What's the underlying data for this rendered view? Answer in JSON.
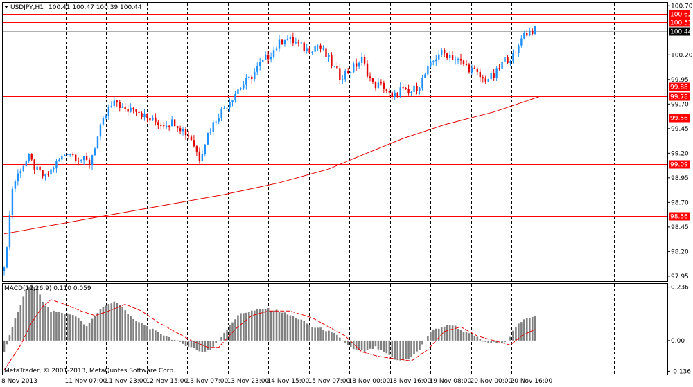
{
  "header": {
    "symbol_label": "USDJPY,H1",
    "ohlc_label": "100.41 100.47 100.39 100.44",
    "dropdown_icon": "triangle-down-icon"
  },
  "copyright": "MetaTrader, © 2001-2013, MetaQuotes Software Corp.",
  "colors": {
    "bull": "#1e90ff",
    "bear": "#e00000",
    "level": "#ff0000",
    "ma": "#e00000",
    "hist": "#808080",
    "grid": "#000000",
    "current_price_bg": "#000000"
  },
  "chart_data": [
    {
      "type": "candlestick",
      "title": "USDJPY,H1",
      "price_axis": {
        "ticks": [
          "100.70",
          "100.20",
          "99.95",
          "99.70",
          "99.45",
          "99.20",
          "98.95",
          "98.70",
          "98.45",
          "98.20",
          "97.95"
        ],
        "ylim": [
          97.9,
          100.73
        ]
      },
      "time_axis": {
        "ticks": [
          "8 Nov 2013",
          "11 Nov 07:00",
          "11 Nov 23:00",
          "12 Nov 15:00",
          "13 Nov 07:00",
          "13 Nov 23:00",
          "14 Nov 15:00",
          "15 Nov 07:00",
          "18 Nov 00:00",
          "18 Nov 16:00",
          "19 Nov 08:00",
          "20 Nov 00:00",
          "20 Nov 16:00"
        ]
      },
      "levels": [
        "100.62",
        "100.53",
        "99.88",
        "99.78",
        "99.56",
        "99.09",
        "98.56"
      ],
      "current_price": "100.44",
      "grid": "vertical dashed",
      "ma_points": [
        [
          0,
          98.38
        ],
        [
          20,
          98.48
        ],
        [
          40,
          98.58
        ],
        [
          60,
          98.68
        ],
        [
          80,
          98.78
        ],
        [
          100,
          98.9
        ],
        [
          118,
          99.04
        ],
        [
          130,
          99.18
        ],
        [
          145,
          99.35
        ],
        [
          160,
          99.49
        ],
        [
          178,
          99.62
        ],
        [
          195,
          99.78
        ]
      ],
      "close_path": [
        [
          0,
          98.0
        ],
        [
          3,
          98.85
        ],
        [
          6,
          99.05
        ],
        [
          9,
          99.15
        ],
        [
          12,
          99.02
        ],
        [
          15,
          98.95
        ],
        [
          19,
          99.1
        ],
        [
          23,
          99.22
        ],
        [
          27,
          99.15
        ],
        [
          31,
          99.1
        ],
        [
          35,
          99.45
        ],
        [
          38,
          99.65
        ],
        [
          41,
          99.72
        ],
        [
          44,
          99.62
        ],
        [
          47,
          99.68
        ],
        [
          52,
          99.55
        ],
        [
          57,
          99.5
        ],
        [
          62,
          99.52
        ],
        [
          68,
          99.35
        ],
        [
          71,
          99.15
        ],
        [
          74,
          99.4
        ],
        [
          78,
          99.6
        ],
        [
          81,
          99.7
        ],
        [
          85,
          99.85
        ],
        [
          89,
          99.95
        ],
        [
          93,
          100.1
        ],
        [
          98,
          100.25
        ],
        [
          102,
          100.38
        ],
        [
          106,
          100.32
        ],
        [
          110,
          100.25
        ],
        [
          114,
          100.3
        ],
        [
          118,
          100.15
        ],
        [
          122,
          99.98
        ],
        [
          126,
          100.05
        ],
        [
          130,
          100.15
        ],
        [
          134,
          99.9
        ],
        [
          138,
          99.88
        ],
        [
          141,
          99.75
        ],
        [
          144,
          99.85
        ],
        [
          147,
          99.8
        ],
        [
          151,
          99.9
        ],
        [
          154,
          100.05
        ],
        [
          158,
          100.22
        ],
        [
          162,
          100.2
        ],
        [
          166,
          100.12
        ],
        [
          170,
          100.05
        ],
        [
          174,
          99.95
        ],
        [
          178,
          99.98
        ],
        [
          182,
          100.15
        ],
        [
          186,
          100.2
        ],
        [
          188,
          100.4
        ],
        [
          192,
          100.45
        ]
      ],
      "copyright": "MetaTrader, © 2001-2013, MetaQuotes Software Corp."
    },
    {
      "type": "bar",
      "title": "MACD(12,26,9) 0.110 0.059",
      "value_axis": {
        "ticks": [
          "0.236",
          "0.00",
          "-0.136"
        ],
        "ylim": [
          -0.15,
          0.25
        ]
      },
      "histogram_path": [
        [
          0,
          -0.05
        ],
        [
          3,
          0.06
        ],
        [
          6,
          0.16
        ],
        [
          8,
          0.22
        ],
        [
          10,
          0.25
        ],
        [
          12,
          0.23
        ],
        [
          14,
          0.17
        ],
        [
          17,
          0.13
        ],
        [
          22,
          0.12
        ],
        [
          26,
          0.11
        ],
        [
          30,
          0.06
        ],
        [
          33,
          0.11
        ],
        [
          36,
          0.15
        ],
        [
          40,
          0.17
        ],
        [
          43,
          0.15
        ],
        [
          47,
          0.09
        ],
        [
          51,
          0.07
        ],
        [
          55,
          0.04
        ],
        [
          59,
          0.02
        ],
        [
          64,
          -0.01
        ],
        [
          68,
          -0.03
        ],
        [
          72,
          -0.05
        ],
        [
          75,
          -0.04
        ],
        [
          78,
          0.0
        ],
        [
          82,
          0.07
        ],
        [
          86,
          0.12
        ],
        [
          90,
          0.13
        ],
        [
          95,
          0.14
        ],
        [
          100,
          0.13
        ],
        [
          104,
          0.11
        ],
        [
          108,
          0.09
        ],
        [
          112,
          0.06
        ],
        [
          116,
          0.05
        ],
        [
          120,
          0.03
        ],
        [
          124,
          -0.01
        ],
        [
          127,
          -0.04
        ],
        [
          131,
          -0.05
        ],
        [
          135,
          -0.03
        ],
        [
          139,
          -0.06
        ],
        [
          143,
          -0.09
        ],
        [
          147,
          -0.08
        ],
        [
          151,
          -0.04
        ],
        [
          155,
          0.04
        ],
        [
          159,
          0.06
        ],
        [
          163,
          0.07
        ],
        [
          167,
          0.04
        ],
        [
          171,
          0.02
        ],
        [
          175,
          -0.01
        ],
        [
          179,
          -0.01
        ],
        [
          183,
          0.0
        ],
        [
          186,
          0.06
        ],
        [
          190,
          0.1
        ],
        [
          193,
          0.11
        ]
      ],
      "signal_path": [
        [
          0,
          -0.13
        ],
        [
          6,
          -0.02
        ],
        [
          10,
          0.08
        ],
        [
          14,
          0.15
        ],
        [
          17,
          0.18
        ],
        [
          22,
          0.16
        ],
        [
          28,
          0.13
        ],
        [
          33,
          0.11
        ],
        [
          38,
          0.13
        ],
        [
          44,
          0.16
        ],
        [
          50,
          0.13
        ],
        [
          56,
          0.08
        ],
        [
          62,
          0.04
        ],
        [
          68,
          0.0
        ],
        [
          74,
          -0.03
        ],
        [
          78,
          -0.03
        ],
        [
          84,
          0.05
        ],
        [
          90,
          0.11
        ],
        [
          96,
          0.13
        ],
        [
          104,
          0.13
        ],
        [
          112,
          0.1
        ],
        [
          118,
          0.06
        ],
        [
          124,
          0.02
        ],
        [
          130,
          -0.05
        ],
        [
          136,
          -0.07
        ],
        [
          142,
          -0.08
        ],
        [
          148,
          -0.09
        ],
        [
          154,
          -0.04
        ],
        [
          160,
          0.04
        ],
        [
          166,
          0.06
        ],
        [
          172,
          0.02
        ],
        [
          178,
          0.0
        ],
        [
          184,
          -0.02
        ],
        [
          188,
          0.02
        ],
        [
          193,
          0.05
        ]
      ]
    }
  ]
}
